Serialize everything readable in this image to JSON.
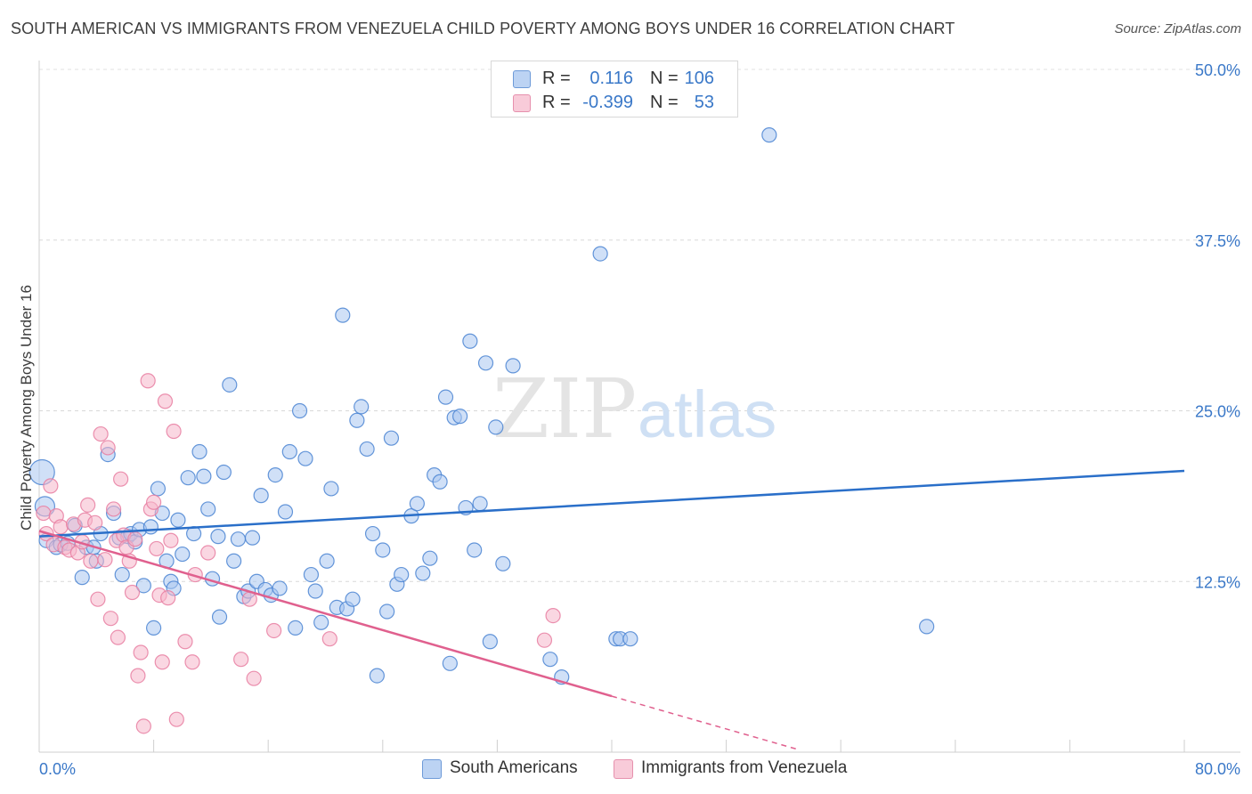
{
  "title": "SOUTH AMERICAN VS IMMIGRANTS FROM VENEZUELA CHILD POVERTY AMONG BOYS UNDER 16 CORRELATION CHART",
  "source": "Source: ZipAtlas.com",
  "watermark": {
    "zip": "ZIP",
    "atlas": "atlas"
  },
  "stats": {
    "rows": [
      {
        "r_label": "R =",
        "r_value": "0.116",
        "n_label": "N =",
        "n_value": "106",
        "color": "#a9c7f0"
      },
      {
        "r_label": "R =",
        "r_value": "-0.399",
        "n_label": "N =",
        "n_value": "53",
        "color": "#f5b6cb"
      }
    ]
  },
  "legend": {
    "items": [
      {
        "label": "South Americans",
        "color": "#a9c7f0"
      },
      {
        "label": "Immigrants from Venezuela",
        "color": "#f5b6cb"
      }
    ]
  },
  "chart_data": {
    "type": "scatter",
    "title": "SOUTH AMERICAN VS IMMIGRANTS FROM VENEZUELA CHILD POVERTY AMONG BOYS UNDER 16 CORRELATION CHART",
    "xlabel": "",
    "ylabel": "Child Poverty Among Boys Under 16",
    "xlim": [
      0,
      80
    ],
    "ylim": [
      0,
      50
    ],
    "x_tick_labels": [
      "0.0%",
      "80.0%"
    ],
    "y_ticks": [
      12.5,
      25.0,
      37.5,
      50.0
    ],
    "y_tick_labels": [
      "12.5%",
      "25.0%",
      "37.5%",
      "50.0%"
    ],
    "grid": true,
    "legend_position": "bottom-center",
    "colors": {
      "blue_stroke": "#4a84d2",
      "blue_fill": "#a9c7f0",
      "blue_line": "#2a6fc9",
      "pink_stroke": "#e87ea1",
      "pink_fill": "#f5b6cb",
      "pink_line": "#e0608e"
    },
    "series": [
      {
        "name": "South Americans",
        "trend": {
          "x": [
            0,
            80
          ],
          "y": [
            15.8,
            20.6
          ]
        },
        "points": [
          [
            0.2,
            20.5
          ],
          [
            0.4,
            18.0
          ],
          [
            0.5,
            15.5
          ],
          [
            1.2,
            15.0
          ],
          [
            1.5,
            15.2
          ],
          [
            2.0,
            15.3
          ],
          [
            2.5,
            16.6
          ],
          [
            3.0,
            12.8
          ],
          [
            3.3,
            15.0
          ],
          [
            3.8,
            15.0
          ],
          [
            4.0,
            14.0
          ],
          [
            4.3,
            16.0
          ],
          [
            4.8,
            21.8
          ],
          [
            5.2,
            17.5
          ],
          [
            5.6,
            15.7
          ],
          [
            5.8,
            13.0
          ],
          [
            6.2,
            15.8
          ],
          [
            6.4,
            16.0
          ],
          [
            6.7,
            15.4
          ],
          [
            7.0,
            16.3
          ],
          [
            7.3,
            12.2
          ],
          [
            7.8,
            16.5
          ],
          [
            8.0,
            9.1
          ],
          [
            8.3,
            19.3
          ],
          [
            8.6,
            17.5
          ],
          [
            8.9,
            14.0
          ],
          [
            9.2,
            12.5
          ],
          [
            9.4,
            12.0
          ],
          [
            9.7,
            17.0
          ],
          [
            10.0,
            14.5
          ],
          [
            10.4,
            20.1
          ],
          [
            10.8,
            16.0
          ],
          [
            11.2,
            22.0
          ],
          [
            11.5,
            20.2
          ],
          [
            11.8,
            17.8
          ],
          [
            12.1,
            12.7
          ],
          [
            12.5,
            15.8
          ],
          [
            12.6,
            9.9
          ],
          [
            12.9,
            20.5
          ],
          [
            13.3,
            26.9
          ],
          [
            13.6,
            14.0
          ],
          [
            13.9,
            15.6
          ],
          [
            14.3,
            11.4
          ],
          [
            14.6,
            11.8
          ],
          [
            14.9,
            15.7
          ],
          [
            15.2,
            12.5
          ],
          [
            15.5,
            18.8
          ],
          [
            15.8,
            11.9
          ],
          [
            16.2,
            11.5
          ],
          [
            16.5,
            20.3
          ],
          [
            16.8,
            12.0
          ],
          [
            17.2,
            17.6
          ],
          [
            17.5,
            22.0
          ],
          [
            17.9,
            9.1
          ],
          [
            18.2,
            25.0
          ],
          [
            18.6,
            21.5
          ],
          [
            19.0,
            13.0
          ],
          [
            19.3,
            11.8
          ],
          [
            19.7,
            9.5
          ],
          [
            20.1,
            14.0
          ],
          [
            20.4,
            19.3
          ],
          [
            20.8,
            10.6
          ],
          [
            21.2,
            32.0
          ],
          [
            21.5,
            10.5
          ],
          [
            21.9,
            11.2
          ],
          [
            22.2,
            24.3
          ],
          [
            22.5,
            25.3
          ],
          [
            22.9,
            22.2
          ],
          [
            23.3,
            16.0
          ],
          [
            23.6,
            5.6
          ],
          [
            24.0,
            14.8
          ],
          [
            24.3,
            10.3
          ],
          [
            24.6,
            23.0
          ],
          [
            25.0,
            12.3
          ],
          [
            25.3,
            13.0
          ],
          [
            26.0,
            17.3
          ],
          [
            26.4,
            18.2
          ],
          [
            26.8,
            13.1
          ],
          [
            27.3,
            14.2
          ],
          [
            27.6,
            20.3
          ],
          [
            28.0,
            19.8
          ],
          [
            28.4,
            26.0
          ],
          [
            28.7,
            6.5
          ],
          [
            29.0,
            24.5
          ],
          [
            29.4,
            24.6
          ],
          [
            29.8,
            17.9
          ],
          [
            30.1,
            30.1
          ],
          [
            30.4,
            14.8
          ],
          [
            30.8,
            18.2
          ],
          [
            31.2,
            28.5
          ],
          [
            31.5,
            8.1
          ],
          [
            31.9,
            23.8
          ],
          [
            32.4,
            13.8
          ],
          [
            33.1,
            28.3
          ],
          [
            35.7,
            6.8
          ],
          [
            36.5,
            5.5
          ],
          [
            39.2,
            36.5
          ],
          [
            40.3,
            8.3
          ],
          [
            40.6,
            8.3
          ],
          [
            41.3,
            8.3
          ],
          [
            51.0,
            45.2
          ],
          [
            62.0,
            9.2
          ]
        ]
      },
      {
        "name": "Immigrants from Venezuela",
        "trend": {
          "x": [
            0,
            40
          ],
          "y": [
            16.2,
            4.1
          ]
        },
        "trend_dashed": {
          "x": [
            40,
            53
          ],
          "y": [
            4.1,
            0.2
          ]
        },
        "points": [
          [
            0.3,
            17.5
          ],
          [
            0.5,
            16.0
          ],
          [
            0.8,
            19.5
          ],
          [
            1.0,
            15.2
          ],
          [
            1.2,
            17.3
          ],
          [
            1.5,
            16.5
          ],
          [
            1.8,
            15.0
          ],
          [
            2.1,
            14.8
          ],
          [
            2.4,
            16.7
          ],
          [
            2.7,
            14.6
          ],
          [
            3.0,
            15.4
          ],
          [
            3.2,
            17.0
          ],
          [
            3.4,
            18.1
          ],
          [
            3.6,
            14.0
          ],
          [
            3.9,
            16.8
          ],
          [
            4.1,
            11.2
          ],
          [
            4.3,
            23.3
          ],
          [
            4.6,
            14.1
          ],
          [
            4.8,
            22.3
          ],
          [
            5.0,
            9.8
          ],
          [
            5.2,
            17.8
          ],
          [
            5.4,
            15.5
          ],
          [
            5.5,
            8.4
          ],
          [
            5.7,
            20.0
          ],
          [
            5.9,
            15.9
          ],
          [
            6.1,
            15.0
          ],
          [
            6.3,
            14.0
          ],
          [
            6.5,
            11.7
          ],
          [
            6.7,
            15.6
          ],
          [
            6.9,
            5.6
          ],
          [
            7.1,
            7.3
          ],
          [
            7.3,
            1.9
          ],
          [
            7.6,
            27.2
          ],
          [
            7.8,
            17.8
          ],
          [
            8.0,
            18.3
          ],
          [
            8.2,
            14.9
          ],
          [
            8.4,
            11.5
          ],
          [
            8.6,
            6.6
          ],
          [
            8.8,
            25.7
          ],
          [
            9.0,
            11.3
          ],
          [
            9.2,
            15.5
          ],
          [
            9.4,
            23.5
          ],
          [
            9.6,
            2.4
          ],
          [
            10.2,
            8.1
          ],
          [
            10.7,
            6.6
          ],
          [
            10.9,
            13.0
          ],
          [
            11.8,
            14.6
          ],
          [
            14.1,
            6.8
          ],
          [
            14.7,
            11.2
          ],
          [
            15.0,
            5.4
          ],
          [
            16.4,
            8.9
          ],
          [
            20.3,
            8.3
          ],
          [
            35.3,
            8.2
          ],
          [
            35.9,
            10.0
          ]
        ]
      }
    ]
  }
}
